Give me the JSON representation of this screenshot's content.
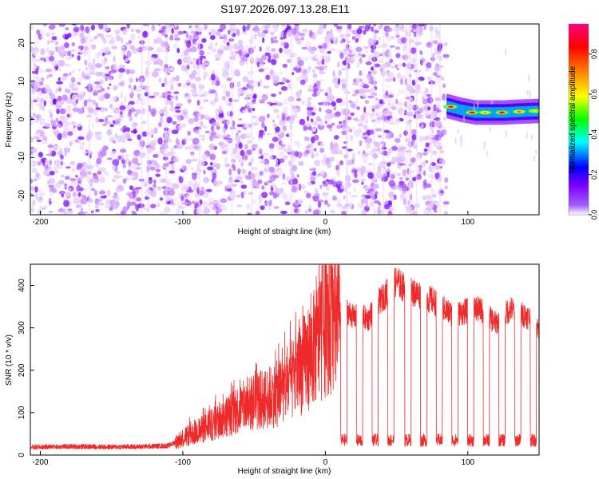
{
  "title": "S197.2026.097.13.28.E11",
  "chart_data": [
    {
      "type": "heatmap",
      "xlabel": "Height of straight line (km)",
      "ylabel": "Frequency (Hz)",
      "xlim": [
        -207,
        150
      ],
      "ylim": [
        -25,
        25
      ],
      "xticks": [
        -200,
        -100,
        0,
        100
      ],
      "yticks": [
        -20,
        -10,
        0,
        10,
        20
      ],
      "colorbar": {
        "label": "Normalized spectral amplitude",
        "range": [
          0,
          0.95
        ],
        "ticks": [
          0.0,
          0.2,
          0.4,
          0.6,
          0.8
        ],
        "tick_labels": [
          "0.0",
          "0.2",
          "0.4",
          "0.6",
          "0.8"
        ],
        "colors": [
          "#ffffff",
          "#8000ff",
          "#0000ff",
          "#00ffff",
          "#00ff00",
          "#ffff00",
          "#ff8000",
          "#ff0000",
          "#ff0080"
        ]
      },
      "noise_region": {
        "x_start": -207,
        "x_end": 85,
        "amplitude_range": [
          0.0,
          0.15
        ]
      },
      "signal_band": {
        "x_start": 85,
        "x_end": 150,
        "center_freq": [
          [
            85,
            3.5
          ],
          [
            95,
            2.5
          ],
          [
            105,
            1.8
          ],
          [
            115,
            1.8
          ],
          [
            125,
            1.8
          ],
          [
            135,
            2.0
          ],
          [
            150,
            2.2
          ]
        ],
        "peaks": [
          {
            "x": 88,
            "freq": 3.3,
            "amp": 0.85
          },
          {
            "x": 103,
            "freq": 1.8,
            "amp": 0.9
          },
          {
            "x": 112,
            "freq": 1.8,
            "amp": 0.7
          },
          {
            "x": 124,
            "freq": 1.8,
            "amp": 0.9
          },
          {
            "x": 136,
            "freq": 2.0,
            "amp": 0.75
          },
          {
            "x": 147,
            "freq": 2.2,
            "amp": 0.6
          }
        ]
      }
    },
    {
      "type": "line",
      "xlabel": "Height of straight line (km)",
      "ylabel": "SNR (10 * v/v)",
      "xlim": [
        -207,
        150
      ],
      "ylim": [
        0,
        450
      ],
      "xticks": [
        -200,
        -100,
        0,
        100
      ],
      "yticks": [
        0,
        100,
        200,
        300,
        400
      ],
      "color": "#ee2a2a",
      "x": [
        -207,
        -190,
        -170,
        -150,
        -130,
        -110,
        -100,
        -90,
        -80,
        -70,
        -60,
        -50,
        -40,
        -30,
        -20,
        -10,
        0,
        5,
        10,
        15,
        20,
        25,
        30,
        35,
        40,
        45,
        50,
        55,
        60,
        65,
        70,
        75,
        80,
        85,
        90,
        95,
        100,
        105,
        110,
        115,
        120,
        125,
        130,
        135,
        140,
        145,
        150
      ],
      "y": [
        18,
        20,
        20,
        19,
        20,
        22,
        40,
        55,
        70,
        90,
        110,
        125,
        135,
        150,
        190,
        240,
        300,
        320,
        330,
        340,
        325,
        330,
        320,
        350,
        370,
        390,
        410,
        395,
        385,
        380,
        370,
        365,
        355,
        340,
        330,
        335,
        340,
        345,
        340,
        325,
        310,
        330,
        345,
        335,
        330,
        320,
        295
      ],
      "dropouts": [
        13,
        24,
        35,
        46,
        58,
        69,
        80,
        91,
        102,
        113,
        124,
        135,
        146
      ],
      "dropout_level": 35
    }
  ]
}
